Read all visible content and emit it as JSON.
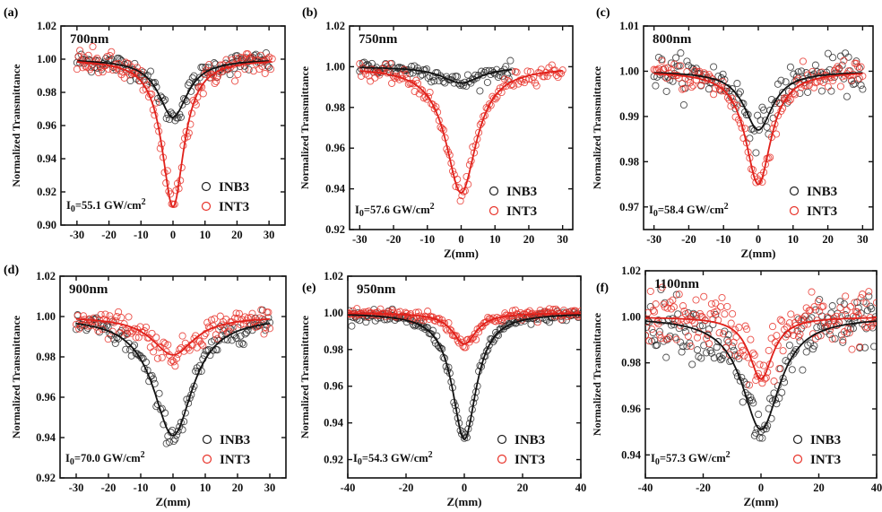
{
  "chart_data": [
    {
      "type": "scatter",
      "panel": "(a)",
      "wavelength": "700nm",
      "intensity": {
        "main": "I",
        "sub": "0",
        "value": "=55.1 GW/cm",
        "sup": "2"
      },
      "xlabel": "",
      "ylabel": "Normalized Transmittance",
      "xlim": [
        -35,
        35
      ],
      "ylim": [
        0.9,
        1.02
      ],
      "xticks": [
        -30,
        -20,
        -10,
        0,
        10,
        20,
        30
      ],
      "yticks": [
        0.9,
        0.92,
        0.94,
        0.96,
        0.98,
        1.0,
        1.02
      ],
      "ytick_labels": [
        "0.90",
        "0.92",
        "0.94",
        "0.96",
        "0.98",
        "1.00",
        "1.02"
      ],
      "xtick_labels": [
        "-30",
        "-20",
        "-10",
        "0",
        "10",
        "20",
        "30"
      ],
      "legend": [
        "INB3",
        "INT3"
      ],
      "series": [
        {
          "name": "INB3",
          "color": "#222222",
          "dip": 0.035,
          "width": 5.5,
          "x_range": [
            -30,
            30
          ],
          "noise": 0.003
        },
        {
          "name": "INT3",
          "color": "#e8332a",
          "dip": 0.089,
          "width": 4.2,
          "x_range": [
            -30,
            31
          ],
          "noise": 0.004
        }
      ]
    },
    {
      "type": "scatter",
      "panel": "(b)",
      "wavelength": "750nm",
      "intensity": {
        "main": "I",
        "sub": "0",
        "value": "=57.6 GW/cm",
        "sup": "2"
      },
      "xlabel": "Z(mm)",
      "ylabel": "Normalized Transmittance",
      "xlim": [
        -33,
        33
      ],
      "ylim": [
        0.92,
        1.02
      ],
      "xticks": [
        -30,
        -20,
        -10,
        0,
        10,
        20,
        30
      ],
      "yticks": [
        0.92,
        0.94,
        0.96,
        0.98,
        1.0,
        1.02
      ],
      "ytick_labels": [
        "0.92",
        "0.94",
        "0.96",
        "0.98",
        "1.00",
        "1.02"
      ],
      "xtick_labels": [
        "-30",
        "-20",
        "-10",
        "0",
        "10",
        "20",
        "30"
      ],
      "legend": [
        "INB3",
        "INT3"
      ],
      "series": [
        {
          "name": "INB3",
          "color": "#222222",
          "dip": 0.008,
          "width": 7,
          "x_range": [
            -30,
            15
          ],
          "noise": 0.002
        },
        {
          "name": "INT3",
          "color": "#e8332a",
          "dip": 0.062,
          "width": 5.5,
          "x_range": [
            -30,
            30
          ],
          "noise": 0.002
        }
      ]
    },
    {
      "type": "scatter",
      "panel": "(c)",
      "wavelength": "800nm",
      "intensity": {
        "main": "I",
        "sub": "0",
        "value": "=58.4 GW/cm",
        "sup": "2"
      },
      "xlabel": "Z(mm)",
      "ylabel": "Normalized Transmittance",
      "xlim": [
        -33,
        33
      ],
      "ylim": [
        0.965,
        1.01
      ],
      "xticks": [
        -30,
        -20,
        -10,
        0,
        10,
        20,
        30
      ],
      "yticks": [
        0.97,
        0.98,
        0.99,
        1.0,
        1.01
      ],
      "ytick_labels": [
        "0.97",
        "0.98",
        "0.99",
        "1.00",
        "1.01"
      ],
      "xtick_labels": [
        "-30",
        "-20",
        "-10",
        "0",
        "10",
        "20",
        "30"
      ],
      "legend": [
        "INB3",
        "INT3"
      ],
      "series": [
        {
          "name": "INB3",
          "color": "#222222",
          "dip": 0.013,
          "width": 5,
          "x_range": [
            -30,
            30
          ],
          "noise": 0.002
        },
        {
          "name": "INT3",
          "color": "#e8332a",
          "dip": 0.025,
          "width": 4.5,
          "x_range": [
            -30,
            30
          ],
          "noise": 0.0015
        }
      ]
    },
    {
      "type": "scatter",
      "panel": "(d)",
      "wavelength": "900nm",
      "intensity": {
        "main": "I",
        "sub": "0",
        "value": "=70.0 GW/cm",
        "sup": "2"
      },
      "xlabel": "Z(mm)",
      "ylabel": "Normalized Transmittance",
      "xlim": [
        -35,
        35
      ],
      "ylim": [
        0.92,
        1.02
      ],
      "xticks": [
        -30,
        -20,
        -10,
        0,
        10,
        20,
        30
      ],
      "yticks": [
        0.92,
        0.94,
        0.96,
        0.98,
        1.0,
        1.02
      ],
      "ytick_labels": [
        "0.92",
        "0.94",
        "0.96",
        "0.98",
        "1.00",
        "1.02"
      ],
      "xtick_labels": [
        "-30",
        "-20",
        "-10",
        "0",
        "10",
        "20",
        "30"
      ],
      "legend": [
        "INB3",
        "INT3"
      ],
      "series": [
        {
          "name": "INB3",
          "color": "#222222",
          "dip": 0.059,
          "width": 7.5,
          "x_range": [
            -30,
            30
          ],
          "noise": 0.003
        },
        {
          "name": "INT3",
          "color": "#e8332a",
          "dip": 0.019,
          "width": 8,
          "x_range": [
            -30,
            30
          ],
          "noise": 0.003
        }
      ]
    },
    {
      "type": "scatter",
      "panel": "(e)",
      "wavelength": "950nm",
      "intensity": {
        "main": "I",
        "sub": "0",
        "value": "=54.3 GW/cm",
        "sup": "2"
      },
      "xlabel": "Z(mm)",
      "ylabel": "Normalized Transmittance",
      "xlim": [
        -40,
        40
      ],
      "ylim": [
        0.91,
        1.02
      ],
      "xticks": [
        -40,
        -20,
        0,
        20,
        40
      ],
      "yticks": [
        0.92,
        0.94,
        0.96,
        0.98,
        1.0,
        1.02
      ],
      "ytick_labels": [
        "0.92",
        "0.94",
        "0.96",
        "0.98",
        "1.00",
        "1.02"
      ],
      "xtick_labels": [
        "-40",
        "-20",
        "0",
        "20",
        "40"
      ],
      "legend": [
        "INB3",
        "INT3"
      ],
      "series": [
        {
          "name": "INB3",
          "color": "#222222",
          "dip": 0.069,
          "width": 5,
          "x_range": [
            -40,
            40
          ],
          "noise": 0.0015
        },
        {
          "name": "INT3",
          "color": "#e8332a",
          "dip": 0.017,
          "width": 5,
          "x_range": [
            -40,
            40
          ],
          "noise": 0.0015
        }
      ]
    },
    {
      "type": "scatter",
      "panel": "(f)",
      "wavelength": "1100nm",
      "intensity": {
        "main": "I",
        "sub": "0",
        "value": "=57.3 GW/cm",
        "sup": "2"
      },
      "xlabel": "Z(mm)",
      "ylabel": "Normalized Transmittance",
      "xlim": [
        -40,
        40
      ],
      "ylim": [
        0.93,
        1.02
      ],
      "xticks": [
        -40,
        -20,
        0,
        20,
        40
      ],
      "yticks": [
        0.94,
        0.96,
        0.98,
        1.0,
        1.02
      ],
      "ytick_labels": [
        "0.94",
        "0.96",
        "0.98",
        "1.00",
        "1.02"
      ],
      "xtick_labels": [
        "-40",
        "-20",
        "0",
        "20",
        "40"
      ],
      "legend": [
        "INB3",
        "INT3"
      ],
      "series": [
        {
          "name": "INB3",
          "color": "#222222",
          "dip": 0.049,
          "width": 8,
          "x_range": [
            -40,
            40
          ],
          "noise": 0.006
        },
        {
          "name": "INT3",
          "color": "#e8332a",
          "dip": 0.027,
          "width": 5,
          "x_range": [
            -40,
            40
          ],
          "noise": 0.006
        }
      ]
    }
  ]
}
